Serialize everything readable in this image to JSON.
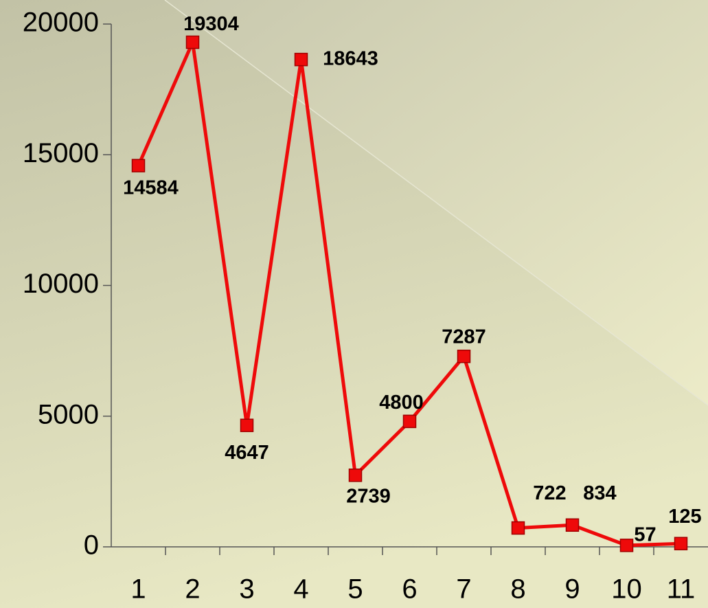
{
  "chart_data": {
    "type": "line",
    "categories": [
      "1",
      "2",
      "3",
      "4",
      "5",
      "6",
      "7",
      "8",
      "9",
      "10",
      "11"
    ],
    "values": [
      14584,
      19304,
      4647,
      18643,
      2739,
      4800,
      7287,
      722,
      834,
      57,
      125
    ],
    "color": "#ee0a0a",
    "ylim": [
      0,
      20000
    ],
    "yticks": [
      0,
      5000,
      10000,
      15000,
      20000
    ],
    "grid": false
  }
}
